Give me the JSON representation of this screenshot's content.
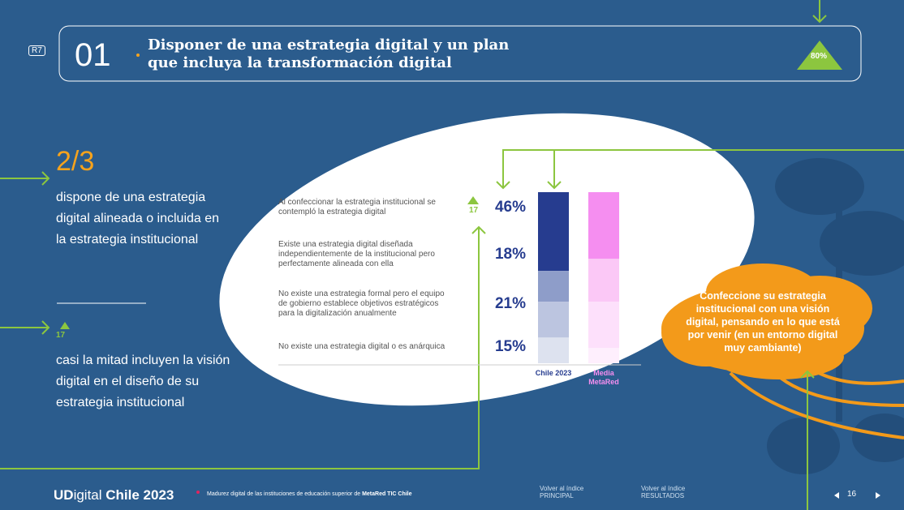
{
  "header": {
    "tag": "R7",
    "number": "01",
    "title_lines": [
      "Disponer de una estrategia digital y un plan",
      "que incluya la transformación digital"
    ],
    "badge": "80%"
  },
  "left": {
    "stat": "2/3",
    "stat_text": "dispone de una estrategia digital alineada o incluida en la estrategia institucional",
    "indicator": "17",
    "indicator_text": "casi la mitad incluyen la visión digital en el diseño de su estrategia institucional"
  },
  "chart_data": {
    "type": "stacked-bar",
    "categories": [
      "Chile 2023",
      "Media MetaRed"
    ],
    "category_colors": [
      "#263c8f",
      "#f58ef0"
    ],
    "indicator": "17",
    "series": [
      {
        "name": "Al confeccionar la estrategia institucional se contempló la estrategia digital",
        "colors": [
          "#263c8f",
          "#f58ef0"
        ],
        "values": [
          46,
          39
        ],
        "value_labels": [
          "46%",
          null
        ]
      },
      {
        "name": "Existe una estrategia digital diseñada independientemente de la institucional pero perfectamente alineada con ella",
        "colors": [
          "#8e9dc9",
          "#fbc8f6"
        ],
        "values": [
          18,
          25
        ],
        "value_labels": [
          "18%",
          null
        ]
      },
      {
        "name": "No existe una estrategia formal pero el equipo de gobierno establece objetivos estratégicos para la digitalización anualmente",
        "colors": [
          "#bcc5e0",
          "#fde0fb"
        ],
        "values": [
          21,
          27
        ],
        "value_labels": [
          "21%",
          null
        ]
      },
      {
        "name": "No existe una estrategia digital o es anárquica",
        "colors": [
          "#dde2ef",
          "#feeffd"
        ],
        "values": [
          15,
          9
        ],
        "value_labels": [
          "15%",
          null
        ]
      }
    ]
  },
  "callout": "Confeccione su estrategia institucional con una visión digital, pensando en lo que está por venir (en un entorno digital muy cambiante)",
  "footer": {
    "brand_ud": "UD",
    "brand_rest": "igital",
    "brand_year": "Chile 2023",
    "subtitle_pre": "Madurez digital de las instituciones de educación superior de ",
    "subtitle_bold": "MetaRed TIC Chile",
    "links": [
      {
        "line1": "Volver al índice",
        "line2": "PRINCIPAL"
      },
      {
        "line1": "Volver al índice",
        "line2": "RESULTADOS"
      }
    ],
    "page": "16"
  }
}
